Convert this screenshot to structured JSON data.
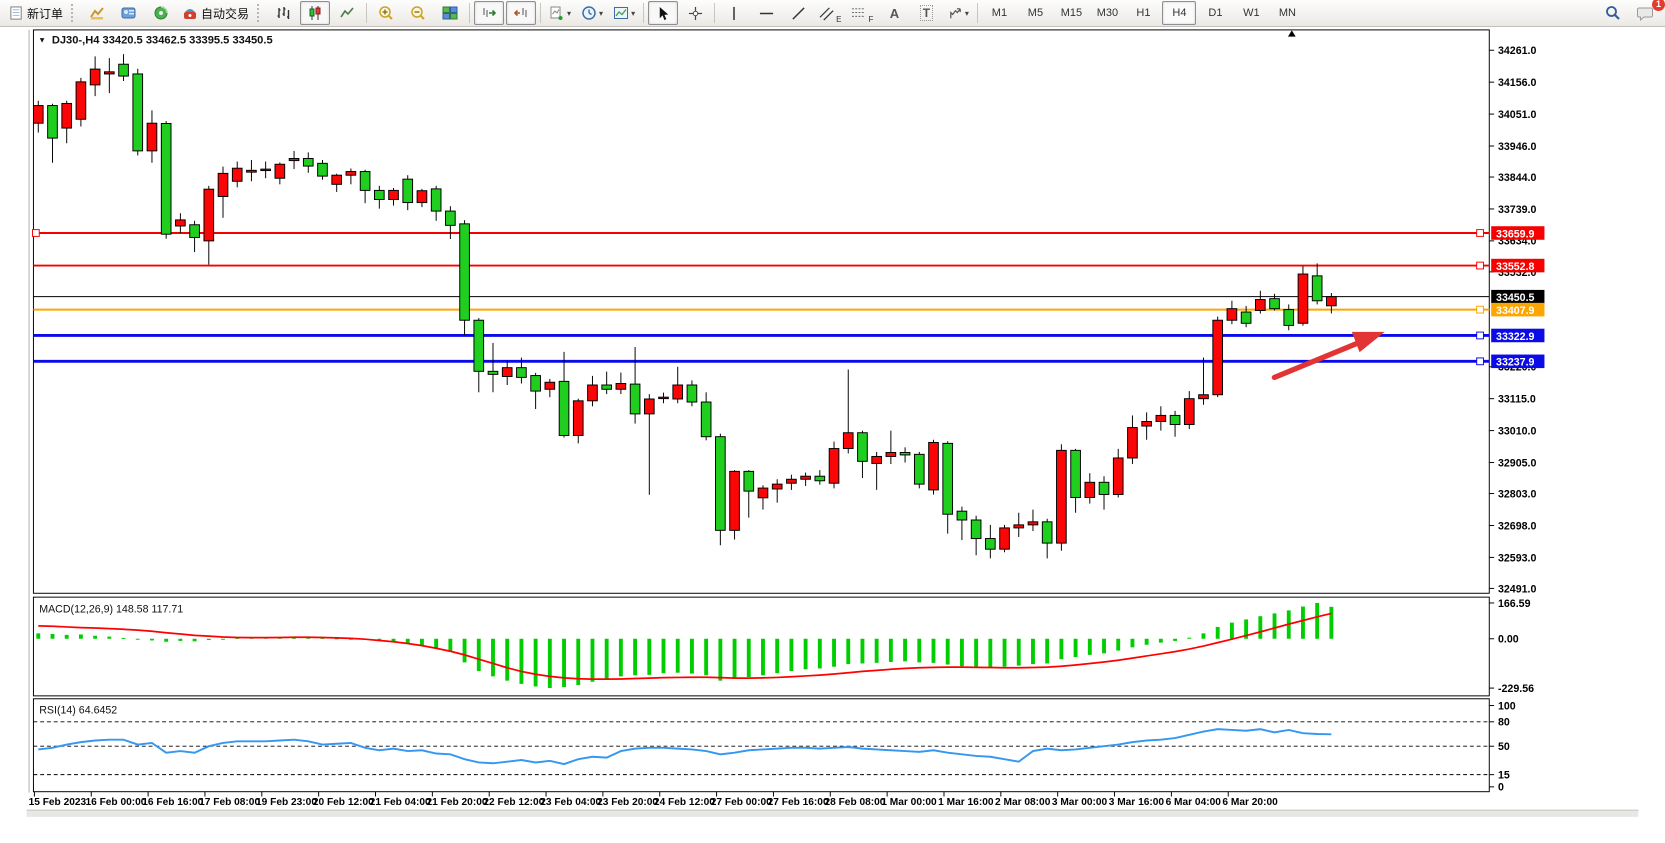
{
  "toolbar": {
    "new_order": "新订单",
    "auto_trading": "自动交易",
    "timeframes": [
      "M1",
      "M5",
      "M15",
      "M30",
      "H1",
      "H4",
      "D1",
      "W1",
      "MN"
    ],
    "active_timeframe": "H4",
    "notification_count": "1",
    "tool_letters": {
      "channel": "E",
      "fibonacci": "F",
      "text": "A",
      "label": "T"
    }
  },
  "header": {
    "dropdown": "▼",
    "title": "DJ30-,H4  33420.5 33462.5 33395.5 33450.5"
  },
  "chart_data": {
    "type": "candlestick",
    "symbol": "DJ30-",
    "period": "H4",
    "ohlc_current": {
      "open": 33420.5,
      "high": 33462.5,
      "low": 33395.5,
      "close": 33450.5
    },
    "y_axis_range": [
      32491.0,
      34261.0
    ],
    "grid": false,
    "candles": [
      [
        34021,
        34095,
        33990,
        34079
      ],
      [
        34079,
        34085,
        33891,
        33972
      ],
      [
        34005,
        34095,
        33955,
        34086
      ],
      [
        34034,
        34170,
        34010,
        34157
      ],
      [
        34147,
        34241,
        34110,
        34199
      ],
      [
        34183,
        34235,
        34120,
        34190
      ],
      [
        34215,
        34248,
        34160,
        34176
      ],
      [
        34183,
        34200,
        33915,
        33930
      ],
      [
        33930,
        34063,
        33891,
        34021
      ],
      [
        34020,
        34028,
        33641,
        33656
      ],
      [
        33683,
        33725,
        33660,
        33703
      ],
      [
        33687,
        33700,
        33597,
        33645
      ],
      [
        33634,
        33815,
        33556,
        33804
      ],
      [
        33780,
        33878,
        33710,
        33856
      ],
      [
        33830,
        33895,
        33810,
        33873
      ],
      [
        33860,
        33900,
        33830,
        33866
      ],
      [
        33866,
        33895,
        33840,
        33870
      ],
      [
        33840,
        33892,
        33820,
        33886
      ],
      [
        33898,
        33930,
        33870,
        33905
      ],
      [
        33905,
        33925,
        33858,
        33880
      ],
      [
        33889,
        33900,
        33835,
        33847
      ],
      [
        33820,
        33855,
        33795,
        33850
      ],
      [
        33850,
        33872,
        33820,
        33862
      ],
      [
        33862,
        33868,
        33758,
        33800
      ],
      [
        33800,
        33815,
        33740,
        33770
      ],
      [
        33770,
        33808,
        33750,
        33800
      ],
      [
        33837,
        33850,
        33735,
        33760
      ],
      [
        33760,
        33805,
        33745,
        33799
      ],
      [
        33805,
        33815,
        33700,
        33732
      ],
      [
        33732,
        33748,
        33640,
        33685
      ],
      [
        33690,
        33702,
        33324,
        33373
      ],
      [
        33373,
        33380,
        33136,
        33205
      ],
      [
        33205,
        33298,
        33136,
        33195
      ],
      [
        33188,
        33240,
        33160,
        33217
      ],
      [
        33217,
        33250,
        33165,
        33185
      ],
      [
        33191,
        33200,
        33081,
        33140
      ],
      [
        33146,
        33180,
        33120,
        33169
      ],
      [
        33172,
        33269,
        32987,
        32994
      ],
      [
        32994,
        33115,
        32968,
        33108
      ],
      [
        33108,
        33190,
        33090,
        33160
      ],
      [
        33160,
        33204,
        33130,
        33146
      ],
      [
        33146,
        33201,
        33130,
        33165
      ],
      [
        33163,
        33285,
        33033,
        33065
      ],
      [
        33065,
        33130,
        32799,
        33114
      ],
      [
        33118,
        33135,
        33100,
        33120
      ],
      [
        33114,
        33220,
        33100,
        33160
      ],
      [
        33160,
        33175,
        33090,
        33104
      ],
      [
        33104,
        33136,
        32978,
        32990
      ],
      [
        32990,
        33000,
        32633,
        32682
      ],
      [
        32682,
        32880,
        32652,
        32876
      ],
      [
        32876,
        32880,
        32724,
        32811
      ],
      [
        32789,
        32830,
        32750,
        32821
      ],
      [
        32818,
        32850,
        32773,
        32834
      ],
      [
        32837,
        32865,
        32815,
        32850
      ],
      [
        32850,
        32872,
        32828,
        32860
      ],
      [
        32860,
        32880,
        32832,
        32845
      ],
      [
        32837,
        32974,
        32820,
        32951
      ],
      [
        32951,
        33211,
        32935,
        33003
      ],
      [
        33003,
        33010,
        32854,
        32909
      ],
      [
        32902,
        32940,
        32815,
        32925
      ],
      [
        32925,
        33010,
        32900,
        32938
      ],
      [
        32938,
        32955,
        32905,
        32930
      ],
      [
        32932,
        32940,
        32820,
        32834
      ],
      [
        32815,
        32980,
        32800,
        32971
      ],
      [
        32968,
        32975,
        32671,
        32735
      ],
      [
        32745,
        32760,
        32650,
        32716
      ],
      [
        32716,
        32730,
        32600,
        32655
      ],
      [
        32655,
        32700,
        32590,
        32620
      ],
      [
        32620,
        32700,
        32610,
        32690
      ],
      [
        32690,
        32740,
        32660,
        32700
      ],
      [
        32700,
        32750,
        32680,
        32710
      ],
      [
        32710,
        32720,
        32590,
        32640
      ],
      [
        32640,
        32965,
        32615,
        32945
      ],
      [
        32945,
        32950,
        32740,
        32790
      ],
      [
        32790,
        32870,
        32770,
        32840
      ],
      [
        32840,
        32860,
        32750,
        32800
      ],
      [
        32800,
        32950,
        32790,
        32920
      ],
      [
        32920,
        33060,
        32900,
        33020
      ],
      [
        33025,
        33070,
        32980,
        33040
      ],
      [
        33040,
        33090,
        33010,
        33060
      ],
      [
        33060,
        33075,
        32990,
        33030
      ],
      [
        33030,
        33140,
        33015,
        33115
      ],
      [
        33115,
        33250,
        33095,
        33128
      ],
      [
        33128,
        33385,
        33120,
        33373
      ],
      [
        33373,
        33437,
        33360,
        33411
      ],
      [
        33400,
        33420,
        33350,
        33363
      ],
      [
        33405,
        33470,
        33395,
        33441
      ],
      [
        33444,
        33460,
        33405,
        33411
      ],
      [
        33408,
        33425,
        33340,
        33356
      ],
      [
        33363,
        33551,
        33355,
        33525
      ],
      [
        33519,
        33560,
        33425,
        33437
      ],
      [
        33420.5,
        33462.5,
        33395.5,
        33450.5
      ]
    ],
    "hlines": [
      {
        "label": "33659.9",
        "price": 33659.9,
        "color": "#F60000",
        "width": 2,
        "left_handle": true,
        "right_handle": true
      },
      {
        "label": "33552.8",
        "price": 33552.8,
        "color": "#F60000",
        "width": 2,
        "right_handle": true
      },
      {
        "label": "33450.5",
        "price": 33450.5,
        "color": "#000000",
        "width": 1
      },
      {
        "label": "33407.9",
        "price": 33407.9,
        "color": "#FFA500",
        "width": 2,
        "right_handle": true
      },
      {
        "label": "33322.9",
        "price": 33322.9,
        "color": "#0B0BE8",
        "width": 3,
        "right_handle": true
      },
      {
        "label": "33237.9",
        "price": 33237.9,
        "color": "#0B0BE8",
        "width": 3,
        "right_handle": true
      }
    ],
    "y_ticks": [
      {
        "t": "34261.0",
        "v": 34261
      },
      {
        "t": "34156.0",
        "v": 34156
      },
      {
        "t": "34051.0",
        "v": 34051
      },
      {
        "t": "33946.0",
        "v": 33946
      },
      {
        "t": "33844.0",
        "v": 33844
      },
      {
        "t": "33739.0",
        "v": 33739
      },
      {
        "t": "33634.0",
        "v": 33634
      },
      {
        "t": "33532.0",
        "v": 33532
      },
      {
        "t": "33220.0",
        "v": 33220
      },
      {
        "t": "33115.0",
        "v": 33115
      },
      {
        "t": "33010.0",
        "v": 33010
      },
      {
        "t": "32905.0",
        "v": 32905
      },
      {
        "t": "32803.0",
        "v": 32803
      },
      {
        "t": "32698.0",
        "v": 32698
      },
      {
        "t": "32593.0",
        "v": 32593
      },
      {
        "t": "32491.0",
        "v": 32491
      }
    ],
    "x_labels": [
      "15 Feb 2023",
      "16 Feb 00:00",
      "16 Feb 16:00",
      "17 Feb 08:00",
      "19 Feb 23:00",
      "20 Feb 12:00",
      "21 Feb 04:00",
      "21 Feb 20:00",
      "22 Feb 12:00",
      "23 Feb 04:00",
      "23 Feb 20:00",
      "24 Feb 12:00",
      "27 Feb 00:00",
      "27 Feb 16:00",
      "28 Feb 08:00",
      "1 Mar 00:00",
      "1 Mar 16:00",
      "2 Mar 08:00",
      "3 Mar 00:00",
      "3 Mar 16:00",
      "6 Mar 04:00",
      "6 Mar 20:00"
    ],
    "indicators": {
      "macd": {
        "label": "MACD(12,26,9) 148.58 117.71",
        "params": "12,26,9",
        "value_macd": 148.58,
        "value_signal": 117.71,
        "axis": [
          {
            "t": "166.59",
            "v": 166.59
          },
          {
            "t": "0.00",
            "v": 0
          },
          {
            "t": "-229.56",
            "v": -229.56
          }
        ],
        "hist": [
          25,
          22,
          18,
          20,
          14,
          10,
          4,
          -4,
          -8,
          -14,
          -10,
          -12,
          -6,
          0,
          4,
          6,
          5,
          8,
          10,
          8,
          4,
          2,
          0,
          -4,
          -10,
          -16,
          -24,
          -34,
          -46,
          -60,
          -110,
          -150,
          -175,
          -195,
          -210,
          -222,
          -229,
          -225,
          -215,
          -200,
          -185,
          -175,
          -170,
          -168,
          -160,
          -158,
          -162,
          -170,
          -195,
          -185,
          -178,
          -170,
          -160,
          -150,
          -142,
          -138,
          -130,
          -118,
          -115,
          -112,
          -108,
          -105,
          -110,
          -112,
          -120,
          -128,
          -132,
          -135,
          -130,
          -125,
          -118,
          -115,
          -95,
          -85,
          -75,
          -68,
          -55,
          -40,
          -28,
          -18,
          -10,
          5,
          25,
          55,
          75,
          90,
          105,
          118,
          132,
          150,
          166.59,
          148.58
        ],
        "signal": [
          60,
          58,
          55,
          52,
          50,
          47,
          44,
          40,
          35,
          28,
          22,
          16,
          12,
          8,
          6,
          5,
          5,
          6,
          7,
          7,
          6,
          4,
          2,
          -2,
          -8,
          -14,
          -22,
          -32,
          -44,
          -58,
          -75,
          -95,
          -115,
          -135,
          -152,
          -165,
          -175,
          -182,
          -186,
          -188,
          -188,
          -187,
          -185,
          -183,
          -181,
          -180,
          -179,
          -179,
          -181,
          -183,
          -183,
          -182,
          -180,
          -177,
          -173,
          -169,
          -164,
          -158,
          -152,
          -147,
          -142,
          -138,
          -135,
          -133,
          -132,
          -132,
          -133,
          -134,
          -135,
          -135,
          -134,
          -132,
          -128,
          -122,
          -115,
          -108,
          -100,
          -90,
          -80,
          -70,
          -60,
          -48,
          -34,
          -18,
          -2,
          15,
          32,
          50,
          68,
          85,
          102,
          117.71
        ]
      },
      "rsi": {
        "label": "RSI(14) 64.6452",
        "params": "14",
        "value": 64.6452,
        "axis": [
          {
            "t": "100",
            "v": 100
          },
          {
            "t": "80",
            "v": 80
          },
          {
            "t": "50",
            "v": 50
          },
          {
            "t": "15",
            "v": 15
          },
          {
            "t": "0",
            "v": 0
          }
        ],
        "dashed_levels": [
          80,
          50,
          15
        ],
        "values": [
          46,
          48,
          52,
          55,
          57,
          58,
          58,
          52,
          54,
          42,
          44,
          42,
          50,
          54,
          56,
          56,
          56,
          57,
          58,
          56,
          52,
          53,
          54,
          48,
          45,
          47,
          44,
          45,
          41,
          40,
          34,
          30,
          29,
          31,
          33,
          30,
          32,
          28,
          34,
          37,
          36,
          44,
          47,
          48,
          48,
          47,
          46,
          44,
          40,
          42,
          45,
          46,
          47,
          48,
          48,
          47,
          48,
          49,
          47,
          46,
          45,
          44,
          43,
          45,
          42,
          40,
          38,
          37,
          34,
          31,
          44,
          47,
          45,
          46,
          48,
          50,
          52,
          55,
          57,
          58,
          60,
          64,
          68,
          71,
          70,
          69,
          71,
          67,
          70,
          66,
          65,
          64.6
        ]
      }
    },
    "annotation_arrow": {
      "color": "#E23434",
      "from": [
        1289,
        389
      ],
      "to": [
        1403,
        342
      ]
    },
    "colors": {
      "bull": "#FB0606",
      "bear": "#1FCE1F",
      "wick": "#000000",
      "macd_hist": "#00CE00",
      "macd_signal": "#FF0000",
      "rsi_line": "#3697F2",
      "bid_tag_bg": "#000000",
      "chart_bg": "#FFFFFF"
    }
  }
}
